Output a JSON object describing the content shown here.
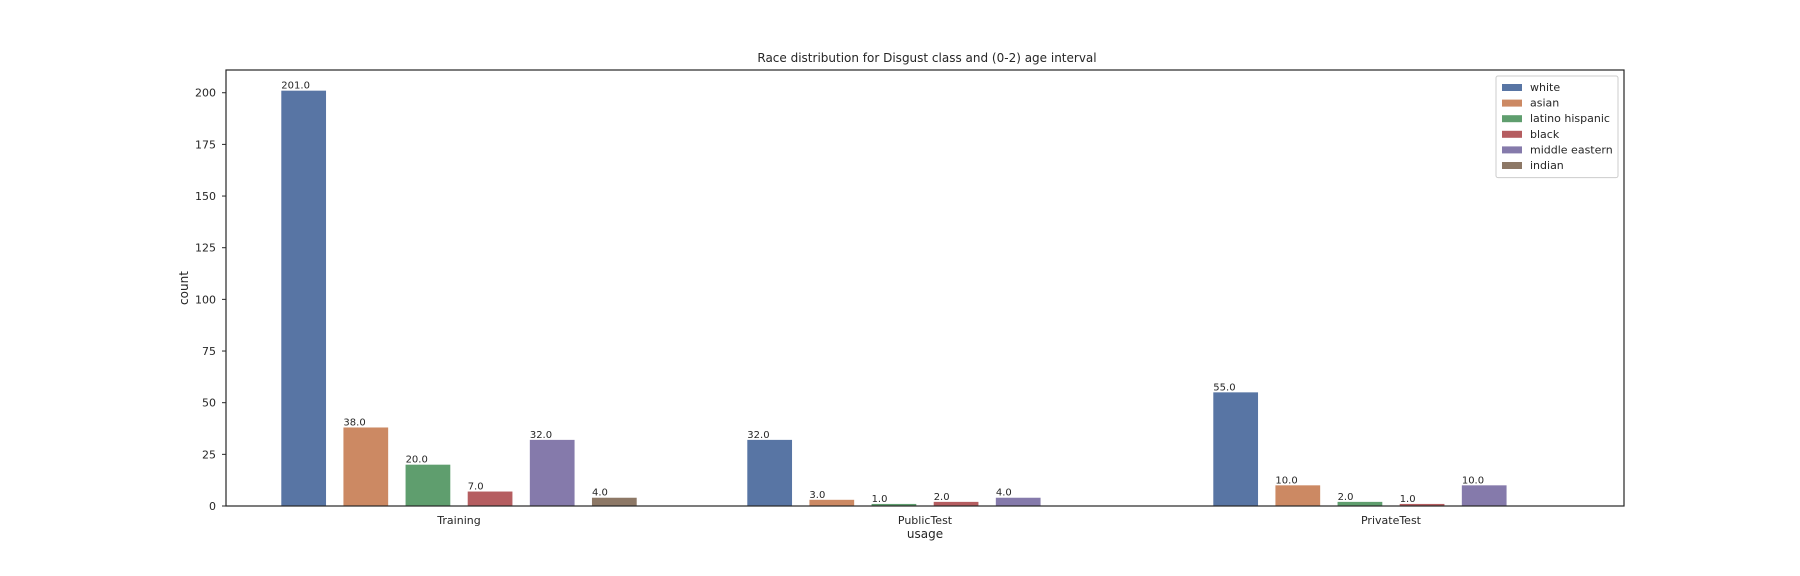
{
  "chart_data": {
    "type": "bar",
    "title": "Race distribution for Disgust class and (0-2) age interval",
    "xlabel": "usage",
    "ylabel": "count",
    "categories": [
      "Training",
      "PublicTest",
      "PrivateTest"
    ],
    "ylim": [
      0,
      211
    ],
    "yticks": [
      0,
      25,
      50,
      75,
      100,
      125,
      150,
      175,
      200
    ],
    "grid": false,
    "legend_position": "top-right",
    "series": [
      {
        "name": "white",
        "color": "#5875a4",
        "values": [
          201,
          32,
          55
        ],
        "labels": [
          "201.0",
          "32.0",
          "55.0"
        ]
      },
      {
        "name": "asian",
        "color": "#cc8963",
        "values": [
          38,
          3,
          10
        ],
        "labels": [
          "38.0",
          "3.0",
          "10.0"
        ]
      },
      {
        "name": "latino hispanic",
        "color": "#5f9e6e",
        "values": [
          20,
          1,
          2
        ],
        "labels": [
          "20.0",
          "1.0",
          "2.0"
        ]
      },
      {
        "name": "black",
        "color": "#b55d60",
        "values": [
          7,
          2,
          1
        ],
        "labels": [
          "7.0",
          "2.0",
          "1.0"
        ]
      },
      {
        "name": "middle eastern",
        "color": "#857aab",
        "values": [
          32,
          4,
          10
        ],
        "labels": [
          "32.0",
          "4.0",
          "10.0"
        ]
      },
      {
        "name": "indian",
        "color": "#8d7866",
        "values": [
          4,
          null,
          null
        ],
        "labels": [
          "4.0",
          "",
          ""
        ]
      }
    ]
  }
}
